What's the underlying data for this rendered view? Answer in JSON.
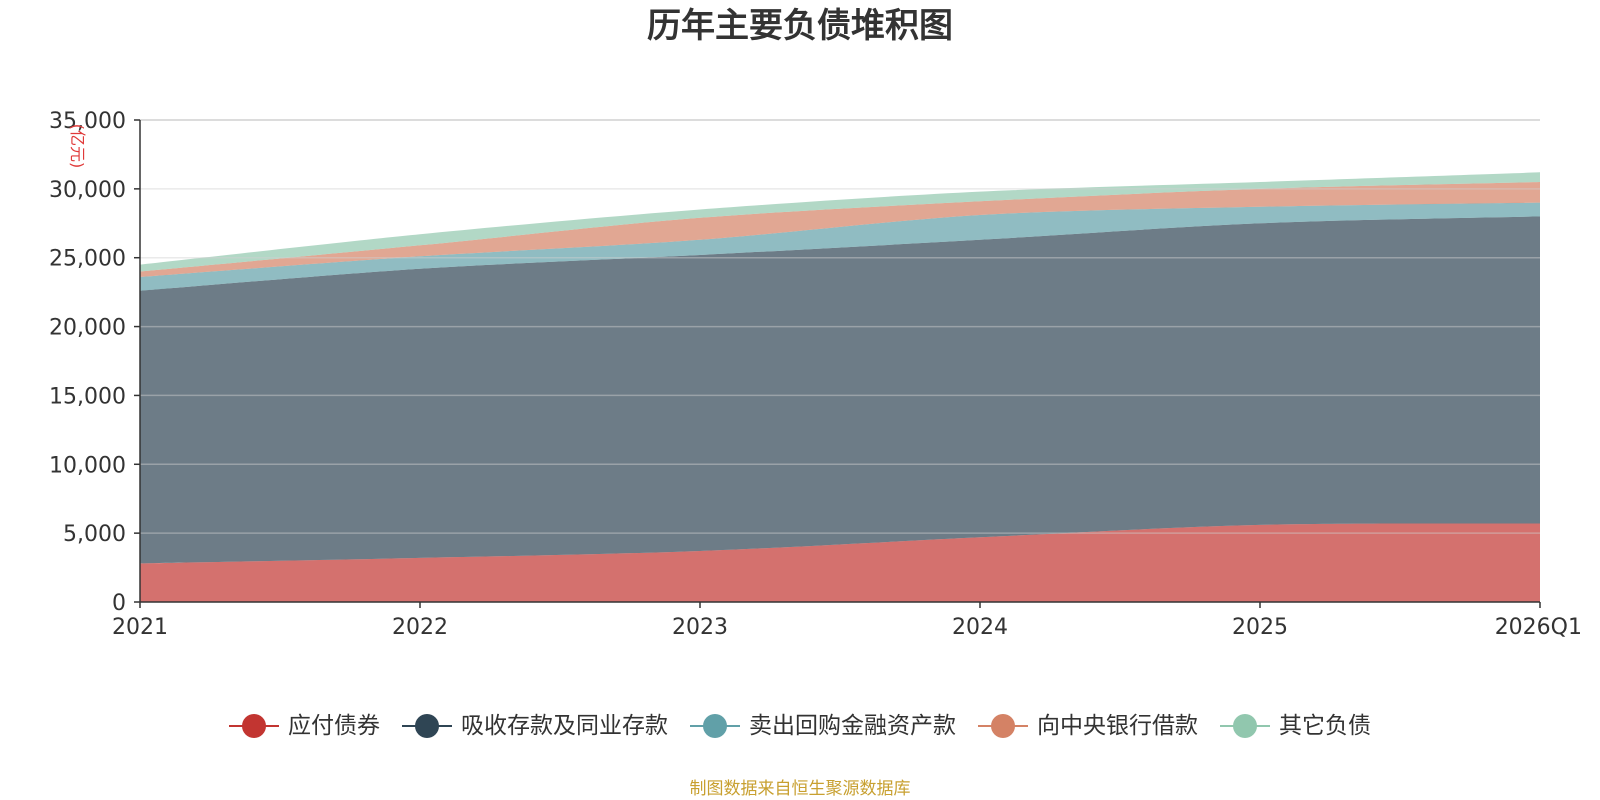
{
  "chart_data": {
    "type": "area",
    "stacked": true,
    "title": "历年主要负债堆积图",
    "unit": "(亿元)",
    "categories": [
      "2021",
      "2022",
      "2023",
      "2024",
      "2025",
      "2026Q1"
    ],
    "ylim": [
      0,
      35000
    ],
    "yticks": [
      0,
      5000,
      10000,
      15000,
      20000,
      25000,
      30000,
      35000
    ],
    "ytick_labels": [
      "0",
      "5,000",
      "10,000",
      "15,000",
      "20,000",
      "25,000",
      "30,000",
      "35,000"
    ],
    "grid": true,
    "legend_position": "bottom",
    "series": [
      {
        "name": "应付债券",
        "color": "#c23531",
        "values": [
          2800,
          3200,
          3700,
          4700,
          5600,
          5700
        ]
      },
      {
        "name": "吸收存款及同业存款",
        "color": "#2f4554",
        "values": [
          19800,
          21000,
          21500,
          21600,
          21900,
          22300
        ]
      },
      {
        "name": "卖出回购金融资产款",
        "color": "#61a0a8",
        "values": [
          1000,
          900,
          1100,
          1800,
          1200,
          1000
        ]
      },
      {
        "name": "向中央银行借款",
        "color": "#d48265",
        "values": [
          400,
          800,
          1600,
          1000,
          1300,
          1500
        ]
      },
      {
        "name": "其它负债",
        "color": "#91c7ae",
        "values": [
          500,
          800,
          600,
          700,
          500,
          700
        ]
      }
    ]
  },
  "footer": {
    "source": "制图数据来自恒生聚源数据库"
  }
}
